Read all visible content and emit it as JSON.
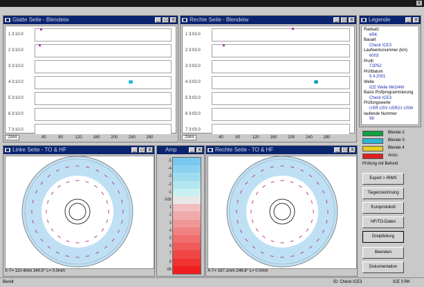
{
  "window": {
    "close_glyph": "x"
  },
  "plot_left": {
    "title": "Glatte Seite - Blendeiw",
    "rows": [
      "1 3:10.0",
      "2 3:10.0",
      "3 3:10.0",
      "4 3:10.0",
      "5 3:10.0",
      "6 3:10.0",
      "7 3:10.0"
    ],
    "xticks": [
      "40",
      "80",
      "120",
      "160",
      "200",
      "240",
      "280",
      "320"
    ],
    "status": "2944"
  },
  "plot_right": {
    "title": "Rechte Seite - Blendeiw",
    "rows": [
      "1 3:03.0",
      "2 3:03.0",
      "3 3:03.0",
      "4 3:03.0",
      "5 3:03.0",
      "6 3:03.0",
      "7 3:03.0"
    ],
    "xticks": [
      "40",
      "80",
      "120",
      "160",
      "200",
      "240",
      "280",
      "320"
    ],
    "status": "2944"
  },
  "legend_panel": {
    "title": "Legende",
    "entries": [
      {
        "k": "Radsatz",
        "v": "6RK"
      },
      {
        "k": "Bauart",
        "v": "Check ICE3"
      },
      {
        "k": "Laufwerksnummer (km)",
        "v": "6003"
      },
      {
        "k": "Profil",
        "v": "T2P52"
      },
      {
        "k": "Prüfdatum",
        "v": "5.4.2001"
      },
      {
        "k": "Welle",
        "v": "ICE Welle Mk3/4W"
      },
      {
        "k": "Basis Prüfprogrammierung",
        "v": "Check ICE3"
      },
      {
        "k": "Prüfungswerte",
        "v": "USR USV USR21 USW"
      },
      {
        "k": "laufende Nummer",
        "v": "98"
      }
    ]
  },
  "disc_left": {
    "title": "Linke Seite - TO & HF",
    "status": "X-T= 110.4mm 240.5°   L= 0.0mm"
  },
  "disc_right": {
    "title": "Rechte Seite - TO & HF",
    "status": "X-T= 167.1mm 246.6°   L= 0.0mm"
  },
  "scale": {
    "title": "Amp",
    "labels": [
      "-5",
      "-4",
      "-3",
      "-2",
      "-1",
      "0db",
      "1",
      "2",
      "3",
      "4",
      "5",
      "6",
      "7",
      "8",
      "db"
    ]
  },
  "legend_swatches": [
    {
      "label": "Blende 2",
      "color": "#10a040"
    },
    {
      "label": "Blende 3",
      "color": "#2ab6d8"
    },
    {
      "label": "Blende 4",
      "color": "#e8d020"
    },
    {
      "label": "Anzo",
      "color": "#e02020"
    }
  ],
  "swatch_caption": "Prüfung mit Befund",
  "buttons": [
    "Export > IRMS",
    "Tiegenzeichnung",
    "Europrotokoll",
    "HF/TO-Daten",
    "Dreipfeilung",
    "Beenden",
    "Dokumentation"
  ],
  "statusbar": {
    "left": "Bereit",
    "mid": "ID:  Check ICE3",
    "right": "ICE 3 RK"
  },
  "colors": {
    "title_bar": "#0a2470",
    "disc_zone": "#bfe0f4",
    "scale_blue": "#aad8f2",
    "scale_red": "#ee4040"
  }
}
